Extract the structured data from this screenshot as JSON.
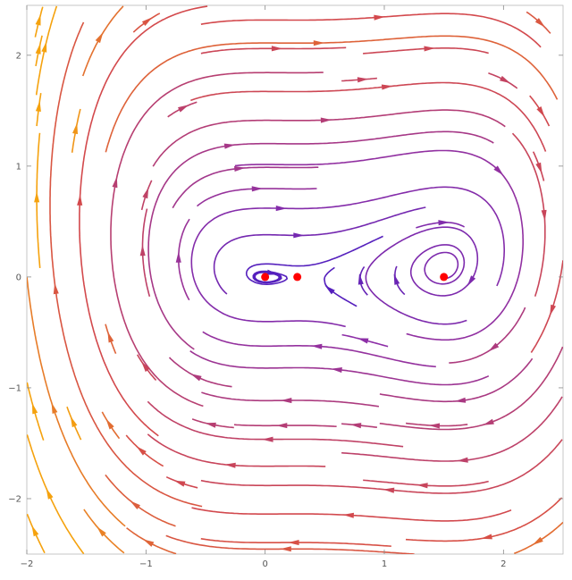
{
  "chart_data": {
    "type": "streamplot",
    "title": "",
    "xlabel": "",
    "ylabel": "",
    "xlim": [
      -2.0,
      2.5
    ],
    "ylim": [
      -2.5,
      2.45
    ],
    "x_ticks": [
      -2,
      -1,
      0,
      1,
      2
    ],
    "y_ticks": [
      -2,
      -1,
      0,
      1,
      2
    ],
    "x_tick_labels": [
      "−2",
      "−1",
      "0",
      "1",
      "2"
    ],
    "y_tick_labels": [
      "−2",
      "−1",
      "0",
      "1",
      "2"
    ],
    "grid": false,
    "legend": "none",
    "color_scale": {
      "low_speed": "#3a18c8",
      "mid_speed": "#8e2fa6",
      "high_speed": "#d54a4a",
      "top_speed": "#f5a20e"
    },
    "equilibrium_color": "#ff0000",
    "equilibria": [
      {
        "x": 0.0,
        "y": 0.0
      },
      {
        "x": 0.27,
        "y": 0.0
      },
      {
        "x": 1.5,
        "y": 0.0
      }
    ]
  }
}
